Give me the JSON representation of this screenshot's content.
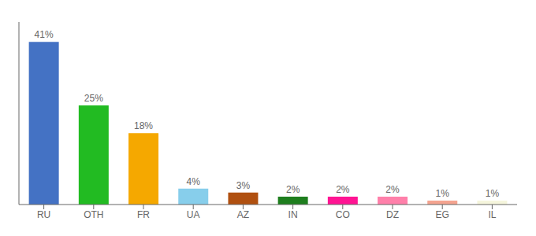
{
  "chart_data": {
    "type": "bar",
    "categories": [
      "RU",
      "OTH",
      "FR",
      "UA",
      "AZ",
      "IN",
      "CO",
      "DZ",
      "EG",
      "IL"
    ],
    "values": [
      41,
      25,
      18,
      4,
      3,
      2,
      2,
      2,
      1,
      1
    ],
    "value_labels": [
      "41%",
      "25%",
      "18%",
      "4%",
      "3%",
      "2%",
      "2%",
      "2%",
      "1%",
      "1%"
    ],
    "colors": [
      "#4472c4",
      "#22bb22",
      "#f5a800",
      "#87ceeb",
      "#b05010",
      "#1e7e1e",
      "#ff1493",
      "#ff80aa",
      "#f4a490",
      "#f5f5dc"
    ],
    "ylim": [
      0,
      46
    ],
    "data_labels": true,
    "tick_labels": "x",
    "grid": false
  }
}
